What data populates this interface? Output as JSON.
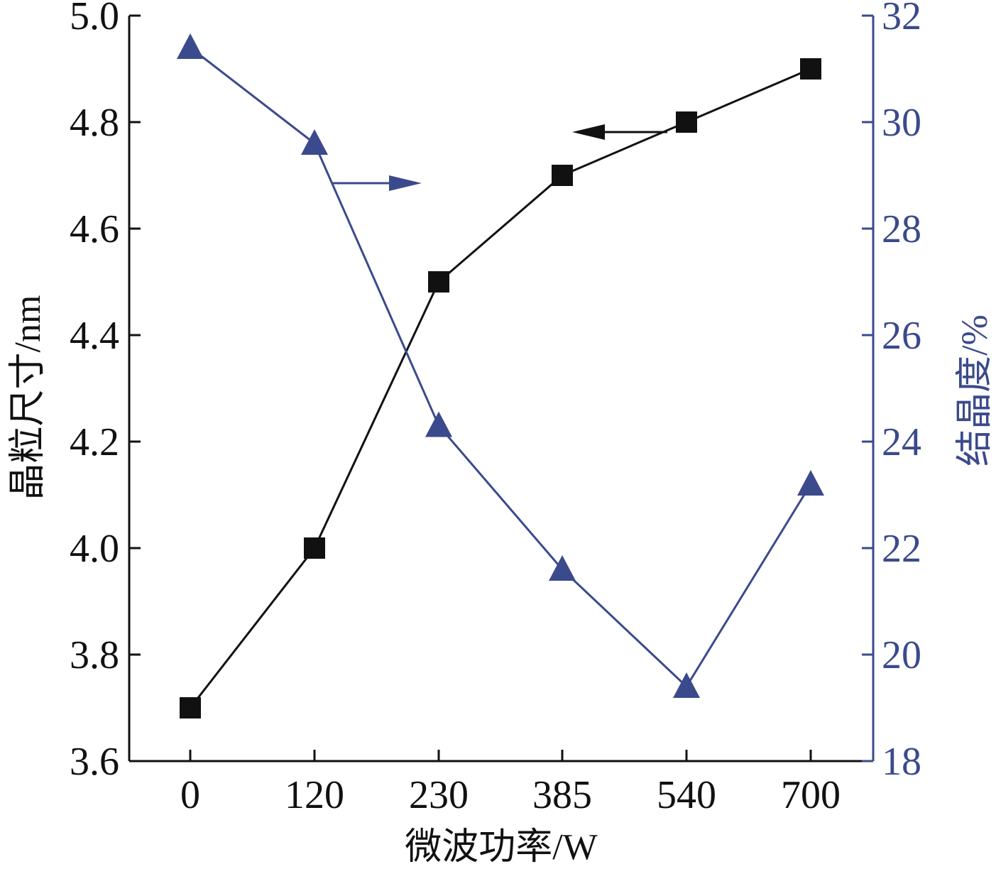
{
  "chart_data": {
    "type": "line",
    "x": [
      0,
      120,
      230,
      385,
      540,
      700
    ],
    "x_tick_labels": [
      "0",
      "120",
      "230",
      "385",
      "540",
      "700"
    ],
    "xlabel": "微波功率/W",
    "ylabel_left": "晶粒尺寸/nm",
    "ylabel_right": "结晶度/%",
    "ylim_left": [
      3.6,
      5.0
    ],
    "ylim_right": [
      18,
      32
    ],
    "y_ticks_left": [
      "3.6",
      "3.8",
      "4.0",
      "4.2",
      "4.4",
      "4.6",
      "4.8",
      "5.0"
    ],
    "y_ticks_right": [
      "18",
      "20",
      "22",
      "24",
      "26",
      "28",
      "30",
      "32"
    ],
    "grid": false,
    "series": [
      {
        "axis": "left",
        "marker": "square",
        "color": "#111111",
        "values": [
          3.7,
          4.0,
          4.5,
          4.7,
          4.8,
          4.9
        ]
      },
      {
        "axis": "right",
        "marker": "triangle",
        "color": "#3b4a8c",
        "values": [
          31.4,
          29.6,
          24.3,
          21.6,
          19.4,
          23.2
        ]
      }
    ],
    "annotations": [
      {
        "type": "arrow",
        "points_to": "left-axis",
        "series_index": 0,
        "color": "#111111"
      },
      {
        "type": "arrow",
        "points_to": "right-axis",
        "series_index": 1,
        "color": "#3b4a8c"
      }
    ]
  }
}
